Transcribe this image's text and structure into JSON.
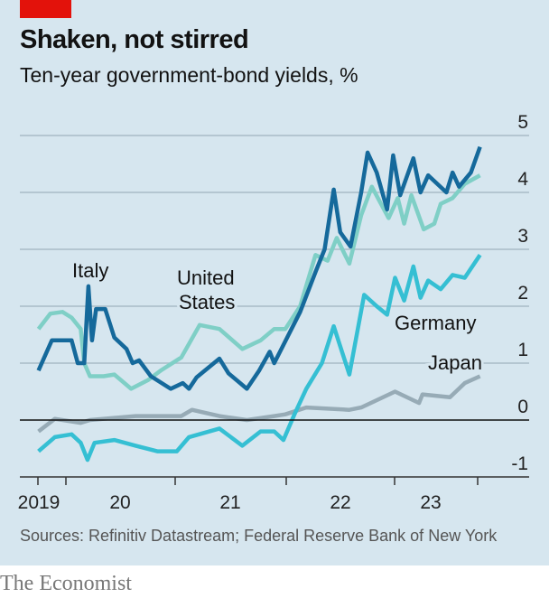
{
  "header": {
    "title": "Shaken, not stirred",
    "subtitle": "Ten-year government-bond yields, %"
  },
  "footer": {
    "source": "Sources: Refinitiv Datastream; Federal Reserve Bank of New York",
    "logo": "The Economist"
  },
  "colors": {
    "background": "#d6e6ef",
    "accent": "#e3120b",
    "Italy": "#15699b",
    "United States": "#7fcfc6",
    "Germany": "#35bfd3",
    "Japan": "#97abb6"
  },
  "chart_data": {
    "type": "line",
    "title": "Shaken, not stirred",
    "subtitle": "Ten-year government-bond yields, %",
    "ylim": [
      -1,
      5
    ],
    "yticks": [
      "5",
      "4",
      "3",
      "2",
      "1",
      "0",
      "-1"
    ],
    "xticks": [
      "2019",
      "20",
      "21",
      "22",
      "23"
    ],
    "grid": true,
    "series": [
      {
        "name": "Italy",
        "label_lines": [
          "Italy"
        ],
        "points": [
          [
            "2019-10-01",
            0.87
          ],
          [
            "2019-11-15",
            1.4
          ],
          [
            "2020-01-20",
            1.4
          ],
          [
            "2020-02-10",
            1.0
          ],
          [
            "2020-03-01",
            1.0
          ],
          [
            "2020-03-15",
            2.35
          ],
          [
            "2020-03-27",
            1.4
          ],
          [
            "2020-04-10",
            1.95
          ],
          [
            "2020-05-10",
            1.95
          ],
          [
            "2020-06-10",
            1.45
          ],
          [
            "2020-07-20",
            1.25
          ],
          [
            "2020-08-10",
            1.0
          ],
          [
            "2020-09-01",
            1.05
          ],
          [
            "2020-10-10",
            0.77
          ],
          [
            "2020-12-15",
            0.55
          ],
          [
            "2021-01-25",
            0.65
          ],
          [
            "2021-02-15",
            0.55
          ],
          [
            "2021-03-10",
            0.75
          ],
          [
            "2021-05-25",
            1.08
          ],
          [
            "2021-06-25",
            0.82
          ],
          [
            "2021-08-25",
            0.55
          ],
          [
            "2021-10-05",
            0.87
          ],
          [
            "2021-11-10",
            1.2
          ],
          [
            "2021-11-25",
            1.0
          ],
          [
            "2022-02-20",
            1.9
          ],
          [
            "2022-04-10",
            2.6
          ],
          [
            "2022-05-10",
            3.0
          ],
          [
            "2022-06-10",
            4.05
          ],
          [
            "2022-07-01",
            3.3
          ],
          [
            "2022-08-05",
            3.05
          ],
          [
            "2022-09-10",
            4.0
          ],
          [
            "2022-10-01",
            4.7
          ],
          [
            "2022-11-01",
            4.35
          ],
          [
            "2022-12-05",
            3.7
          ],
          [
            "2022-12-25",
            4.65
          ],
          [
            "2023-01-18",
            3.95
          ],
          [
            "2023-03-01",
            4.6
          ],
          [
            "2023-03-25",
            4.0
          ],
          [
            "2023-04-20",
            4.3
          ],
          [
            "2023-06-20",
            4.0
          ],
          [
            "2023-07-10",
            4.35
          ],
          [
            "2023-08-01",
            4.1
          ],
          [
            "2023-09-10",
            4.35
          ],
          [
            "2023-10-10",
            4.8
          ]
        ]
      },
      {
        "name": "United States",
        "label_lines": [
          "United",
          "States"
        ],
        "points": [
          [
            "2019-10-01",
            1.6
          ],
          [
            "2019-11-10",
            1.87
          ],
          [
            "2019-12-20",
            1.9
          ],
          [
            "2020-01-20",
            1.8
          ],
          [
            "2020-02-20",
            1.6
          ],
          [
            "2020-03-01",
            1.0
          ],
          [
            "2020-03-20",
            0.77
          ],
          [
            "2020-05-05",
            0.77
          ],
          [
            "2020-06-10",
            0.8
          ],
          [
            "2020-08-05",
            0.55
          ],
          [
            "2020-09-30",
            0.7
          ],
          [
            "2020-11-15",
            0.88
          ],
          [
            "2021-01-20",
            1.1
          ],
          [
            "2021-03-20",
            1.67
          ],
          [
            "2021-05-25",
            1.6
          ],
          [
            "2021-08-10",
            1.25
          ],
          [
            "2021-10-10",
            1.4
          ],
          [
            "2021-11-25",
            1.6
          ],
          [
            "2022-01-01",
            1.6
          ],
          [
            "2022-02-20",
            2.0
          ],
          [
            "2022-04-10",
            2.9
          ],
          [
            "2022-05-20",
            2.8
          ],
          [
            "2022-06-20",
            3.2
          ],
          [
            "2022-08-01",
            2.75
          ],
          [
            "2022-09-10",
            3.6
          ],
          [
            "2022-10-15",
            4.1
          ],
          [
            "2022-11-10",
            3.85
          ],
          [
            "2022-12-10",
            3.55
          ],
          [
            "2023-01-10",
            3.9
          ],
          [
            "2023-02-01",
            3.45
          ],
          [
            "2023-02-25",
            3.95
          ],
          [
            "2023-04-05",
            3.35
          ],
          [
            "2023-05-10",
            3.45
          ],
          [
            "2023-06-01",
            3.8
          ],
          [
            "2023-07-10",
            3.9
          ],
          [
            "2023-08-20",
            4.15
          ],
          [
            "2023-10-10",
            4.3
          ]
        ]
      },
      {
        "name": "Germany",
        "label_lines": [
          "Germany"
        ],
        "points": [
          [
            "2019-10-01",
            -0.55
          ],
          [
            "2019-11-25",
            -0.3
          ],
          [
            "2020-01-20",
            -0.25
          ],
          [
            "2020-02-20",
            -0.4
          ],
          [
            "2020-03-12",
            -0.7
          ],
          [
            "2020-04-05",
            -0.4
          ],
          [
            "2020-06-10",
            -0.35
          ],
          [
            "2020-08-20",
            -0.45
          ],
          [
            "2020-11-01",
            -0.55
          ],
          [
            "2021-01-05",
            -0.55
          ],
          [
            "2021-02-15",
            -0.3
          ],
          [
            "2021-05-25",
            -0.15
          ],
          [
            "2021-08-10",
            -0.45
          ],
          [
            "2021-10-10",
            -0.2
          ],
          [
            "2021-11-25",
            -0.2
          ],
          [
            "2021-12-25",
            -0.35
          ],
          [
            "2022-02-01",
            0.1
          ],
          [
            "2022-03-10",
            0.55
          ],
          [
            "2022-05-01",
            1.0
          ],
          [
            "2022-06-10",
            1.65
          ],
          [
            "2022-08-01",
            0.8
          ],
          [
            "2022-09-20",
            2.2
          ],
          [
            "2022-11-01",
            2.0
          ],
          [
            "2022-12-05",
            1.85
          ],
          [
            "2023-01-01",
            2.5
          ],
          [
            "2023-02-01",
            2.1
          ],
          [
            "2023-03-01",
            2.7
          ],
          [
            "2023-03-25",
            2.15
          ],
          [
            "2023-04-20",
            2.45
          ],
          [
            "2023-06-01",
            2.3
          ],
          [
            "2023-07-10",
            2.55
          ],
          [
            "2023-08-20",
            2.5
          ],
          [
            "2023-10-10",
            2.9
          ]
        ]
      },
      {
        "name": "Japan",
        "label_lines": [
          "Japan"
        ],
        "points": [
          [
            "2019-10-01",
            -0.2
          ],
          [
            "2019-11-25",
            0.02
          ],
          [
            "2020-02-20",
            -0.05
          ],
          [
            "2020-03-20",
            0.0
          ],
          [
            "2020-08-20",
            0.07
          ],
          [
            "2021-01-20",
            0.07
          ],
          [
            "2021-02-25",
            0.18
          ],
          [
            "2021-05-25",
            0.07
          ],
          [
            "2021-08-25",
            0.0
          ],
          [
            "2021-11-25",
            0.07
          ],
          [
            "2022-01-01",
            0.1
          ],
          [
            "2022-03-10",
            0.22
          ],
          [
            "2022-08-01",
            0.18
          ],
          [
            "2022-09-10",
            0.22
          ],
          [
            "2023-01-01",
            0.5
          ],
          [
            "2023-03-20",
            0.3
          ],
          [
            "2023-04-01",
            0.45
          ],
          [
            "2023-07-01",
            0.4
          ],
          [
            "2023-08-20",
            0.65
          ],
          [
            "2023-10-10",
            0.77
          ]
        ]
      }
    ]
  }
}
